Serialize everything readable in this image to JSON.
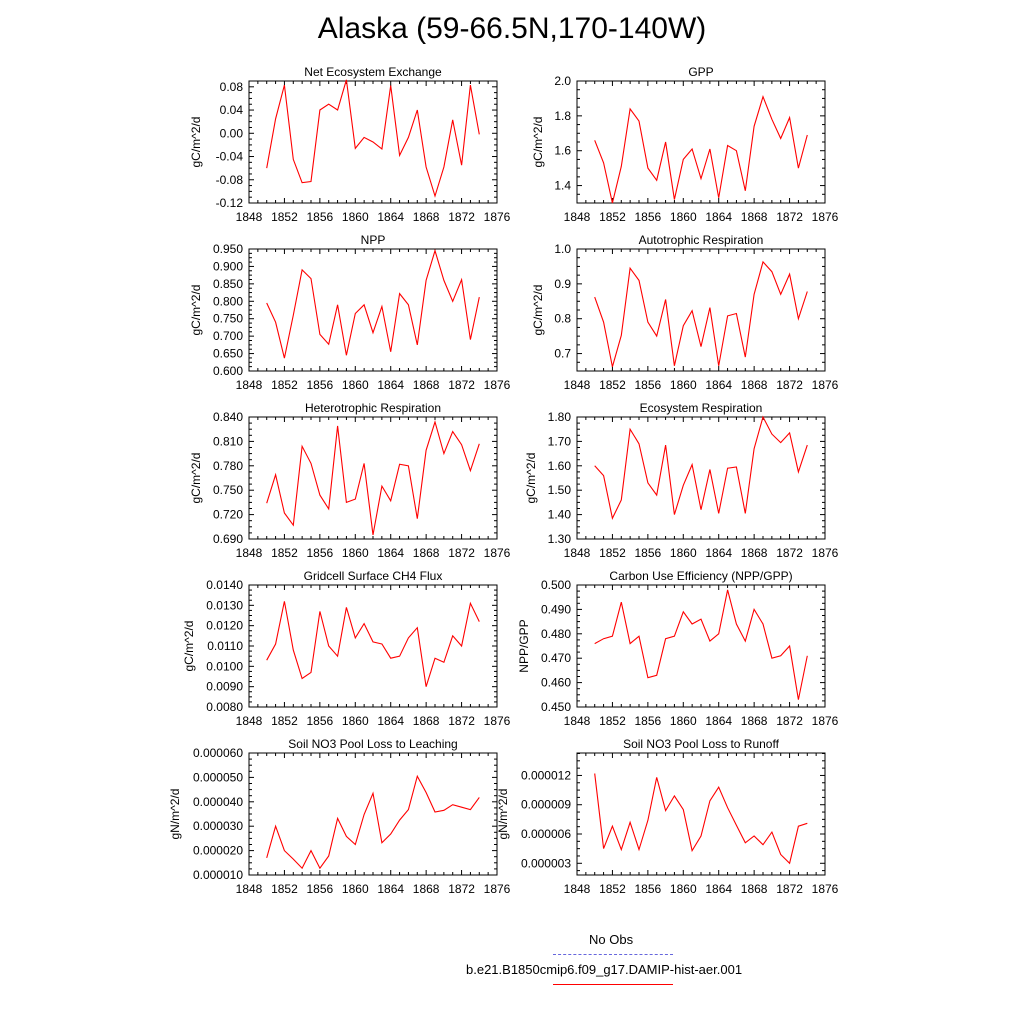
{
  "title": "Alaska (59-66.5N,170-140W)",
  "legend": {
    "obs_label": "No Obs",
    "model_label": "b.e21.B1850cmip6.f09_g17.DAMIP-hist-aer.001",
    "obs_color": "#6666dd",
    "model_color": "#ff0000"
  },
  "chart_data": [
    {
      "type": "line",
      "title": "Net Ecosystem Exchange",
      "ylabel": "gC/m^2/d",
      "xlim": [
        1848,
        1876
      ],
      "ylim": [
        -0.12,
        0.09
      ],
      "xticks": [
        "1848",
        "1852",
        "1856",
        "1860",
        "1864",
        "1868",
        "1872",
        "1876"
      ],
      "yticks": [
        "0.08",
        "0.04",
        "0.00",
        "-0.04",
        "-0.08",
        "-0.12"
      ],
      "x": [
        1850,
        1851,
        1852,
        1853,
        1854,
        1855,
        1856,
        1857,
        1858,
        1859,
        1860,
        1861,
        1862,
        1863,
        1864,
        1865,
        1866,
        1867,
        1868,
        1869,
        1870,
        1871,
        1872,
        1873,
        1874
      ],
      "y": [
        -0.06,
        0.025,
        0.083,
        -0.045,
        -0.085,
        -0.083,
        0.04,
        0.05,
        0.04,
        0.092,
        -0.026,
        -0.007,
        -0.015,
        -0.027,
        0.082,
        -0.038,
        -0.007,
        0.04,
        -0.058,
        -0.108,
        -0.058,
        0.023,
        -0.055,
        0.083,
        -0.002
      ]
    },
    {
      "type": "line",
      "title": "GPP",
      "ylabel": "gC/m^2/d",
      "xlim": [
        1848,
        1876
      ],
      "ylim": [
        1.3,
        2.0
      ],
      "xticks": [
        "1848",
        "1852",
        "1856",
        "1860",
        "1864",
        "1868",
        "1872",
        "1876"
      ],
      "yticks": [
        "2.0",
        "1.8",
        "1.6",
        "1.4"
      ],
      "x": [
        1850,
        1851,
        1852,
        1853,
        1854,
        1855,
        1856,
        1857,
        1858,
        1859,
        1860,
        1861,
        1862,
        1863,
        1864,
        1865,
        1866,
        1867,
        1868,
        1869,
        1870,
        1871,
        1872,
        1873,
        1874
      ],
      "y": [
        1.66,
        1.53,
        1.3,
        1.51,
        1.84,
        1.77,
        1.5,
        1.43,
        1.65,
        1.32,
        1.55,
        1.61,
        1.44,
        1.61,
        1.33,
        1.63,
        1.6,
        1.37,
        1.74,
        1.91,
        1.78,
        1.67,
        1.79,
        1.5,
        1.69
      ]
    },
    {
      "type": "line",
      "title": "NPP",
      "ylabel": "gC/m^2/d",
      "xlim": [
        1848,
        1876
      ],
      "ylim": [
        0.6,
        0.95
      ],
      "xticks": [
        "1848",
        "1852",
        "1856",
        "1860",
        "1864",
        "1868",
        "1872",
        "1876"
      ],
      "yticks": [
        "0.950",
        "0.900",
        "0.850",
        "0.800",
        "0.750",
        "0.700",
        "0.650",
        "0.600"
      ],
      "x": [
        1850,
        1851,
        1852,
        1853,
        1854,
        1855,
        1856,
        1857,
        1858,
        1859,
        1860,
        1861,
        1862,
        1863,
        1864,
        1865,
        1866,
        1867,
        1868,
        1869,
        1870,
        1871,
        1872,
        1873,
        1874
      ],
      "y": [
        0.795,
        0.74,
        0.637,
        0.76,
        0.89,
        0.865,
        0.705,
        0.677,
        0.79,
        0.645,
        0.765,
        0.79,
        0.71,
        0.785,
        0.655,
        0.822,
        0.79,
        0.675,
        0.86,
        0.945,
        0.86,
        0.8,
        0.862,
        0.69,
        0.812
      ]
    },
    {
      "type": "line",
      "title": "Autotrophic Respiration",
      "ylabel": "gC/m^2/d",
      "xlim": [
        1848,
        1876
      ],
      "ylim": [
        0.65,
        1.0
      ],
      "xticks": [
        "1848",
        "1852",
        "1856",
        "1860",
        "1864",
        "1868",
        "1872",
        "1876"
      ],
      "yticks": [
        "1.0",
        "0.9",
        "0.8",
        "0.7"
      ],
      "x": [
        1850,
        1851,
        1852,
        1853,
        1854,
        1855,
        1856,
        1857,
        1858,
        1859,
        1860,
        1861,
        1862,
        1863,
        1864,
        1865,
        1866,
        1867,
        1868,
        1869,
        1870,
        1871,
        1872,
        1873,
        1874
      ],
      "y": [
        0.862,
        0.79,
        0.662,
        0.752,
        0.945,
        0.91,
        0.79,
        0.75,
        0.855,
        0.665,
        0.78,
        0.823,
        0.72,
        0.832,
        0.665,
        0.808,
        0.815,
        0.69,
        0.87,
        0.963,
        0.935,
        0.87,
        0.928,
        0.8,
        0.878
      ]
    },
    {
      "type": "line",
      "title": "Heterotrophic Respiration",
      "ylabel": "gC/m^2/d",
      "xlim": [
        1848,
        1876
      ],
      "ylim": [
        0.69,
        0.84
      ],
      "xticks": [
        "1848",
        "1852",
        "1856",
        "1860",
        "1864",
        "1868",
        "1872",
        "1876"
      ],
      "yticks": [
        "0.840",
        "0.810",
        "0.780",
        "0.750",
        "0.720",
        "0.690"
      ],
      "x": [
        1850,
        1851,
        1852,
        1853,
        1854,
        1855,
        1856,
        1857,
        1858,
        1859,
        1860,
        1861,
        1862,
        1863,
        1864,
        1865,
        1866,
        1867,
        1868,
        1869,
        1870,
        1871,
        1872,
        1873,
        1874
      ],
      "y": [
        0.734,
        0.769,
        0.722,
        0.707,
        0.804,
        0.783,
        0.744,
        0.727,
        0.829,
        0.735,
        0.739,
        0.783,
        0.695,
        0.755,
        0.737,
        0.782,
        0.78,
        0.715,
        0.799,
        0.834,
        0.795,
        0.822,
        0.806,
        0.774,
        0.807
      ]
    },
    {
      "type": "line",
      "title": "Ecosystem Respiration",
      "ylabel": "gC/m^2/d",
      "xlim": [
        1848,
        1876
      ],
      "ylim": [
        1.3,
        1.8
      ],
      "xticks": [
        "1848",
        "1852",
        "1856",
        "1860",
        "1864",
        "1868",
        "1872",
        "1876"
      ],
      "yticks": [
        "1.80",
        "1.70",
        "1.60",
        "1.50",
        "1.40",
        "1.30"
      ],
      "x": [
        1850,
        1851,
        1852,
        1853,
        1854,
        1855,
        1856,
        1857,
        1858,
        1859,
        1860,
        1861,
        1862,
        1863,
        1864,
        1865,
        1866,
        1867,
        1868,
        1869,
        1870,
        1871,
        1872,
        1873,
        1874
      ],
      "y": [
        1.6,
        1.56,
        1.385,
        1.46,
        1.75,
        1.69,
        1.53,
        1.48,
        1.685,
        1.4,
        1.52,
        1.605,
        1.42,
        1.585,
        1.405,
        1.59,
        1.595,
        1.405,
        1.67,
        1.8,
        1.73,
        1.695,
        1.735,
        1.575,
        1.685
      ]
    },
    {
      "type": "line",
      "title": "Gridcell Surface CH4 Flux",
      "ylabel": "gC/m^2/d",
      "xlim": [
        1848,
        1876
      ],
      "ylim": [
        0.008,
        0.014
      ],
      "xticks": [
        "1848",
        "1852",
        "1856",
        "1860",
        "1864",
        "1868",
        "1872",
        "1876"
      ],
      "yticks": [
        "0.0140",
        "0.0130",
        "0.0120",
        "0.0110",
        "0.0100",
        "0.0090",
        "0.0080"
      ],
      "x": [
        1850,
        1851,
        1852,
        1853,
        1854,
        1855,
        1856,
        1857,
        1858,
        1859,
        1860,
        1861,
        1862,
        1863,
        1864,
        1865,
        1866,
        1867,
        1868,
        1869,
        1870,
        1871,
        1872,
        1873,
        1874
      ],
      "y": [
        0.0103,
        0.0111,
        0.0132,
        0.0108,
        0.0094,
        0.0097,
        0.0127,
        0.011,
        0.0105,
        0.0129,
        0.0114,
        0.0121,
        0.0112,
        0.0111,
        0.0104,
        0.0105,
        0.0114,
        0.0119,
        0.009,
        0.0104,
        0.0102,
        0.0115,
        0.011,
        0.0131,
        0.0122
      ]
    },
    {
      "type": "line",
      "title": "Carbon Use Efficiency (NPP/GPP)",
      "ylabel": "NPP/GPP",
      "xlim": [
        1848,
        1876
      ],
      "ylim": [
        0.45,
        0.5
      ],
      "xticks": [
        "1848",
        "1852",
        "1856",
        "1860",
        "1864",
        "1868",
        "1872",
        "1876"
      ],
      "yticks": [
        "0.500",
        "0.490",
        "0.480",
        "0.470",
        "0.460",
        "0.450"
      ],
      "x": [
        1850,
        1851,
        1852,
        1853,
        1854,
        1855,
        1856,
        1857,
        1858,
        1859,
        1860,
        1861,
        1862,
        1863,
        1864,
        1865,
        1866,
        1867,
        1868,
        1869,
        1870,
        1871,
        1872,
        1873,
        1874
      ],
      "y": [
        0.476,
        0.478,
        0.479,
        0.493,
        0.476,
        0.479,
        0.462,
        0.463,
        0.478,
        0.479,
        0.489,
        0.484,
        0.486,
        0.477,
        0.48,
        0.498,
        0.484,
        0.477,
        0.49,
        0.484,
        0.47,
        0.471,
        0.475,
        0.453,
        0.471
      ]
    },
    {
      "type": "line",
      "title": "Soil NO3 Pool Loss to Leaching",
      "ylabel": "gN/m^2/d",
      "xlim": [
        1848,
        1876
      ],
      "ylim": [
        1e-05,
        6e-05
      ],
      "xticks": [
        "1848",
        "1852",
        "1856",
        "1860",
        "1864",
        "1868",
        "1872",
        "1876"
      ],
      "yticks": [
        "0.000060",
        "0.000050",
        "0.000040",
        "0.000030",
        "0.000020",
        "0.000010"
      ],
      "x": [
        1850,
        1851,
        1852,
        1853,
        1854,
        1855,
        1856,
        1857,
        1858,
        1859,
        1860,
        1861,
        1862,
        1863,
        1864,
        1865,
        1866,
        1867,
        1868,
        1869,
        1870,
        1871,
        1872,
        1873,
        1874
      ],
      "y": [
        1.7e-05,
        3e-05,
        2e-05,
        1.65e-05,
        1.28e-05,
        2e-05,
        1.28e-05,
        1.78e-05,
        3.32e-05,
        2.58e-05,
        2.25e-05,
        3.48e-05,
        4.35e-05,
        2.32e-05,
        2.68e-05,
        3.25e-05,
        3.68e-05,
        5.05e-05,
        4.38e-05,
        3.58e-05,
        3.65e-05,
        3.88e-05,
        3.78e-05,
        3.68e-05,
        4.18e-05
      ]
    },
    {
      "type": "line",
      "title": "Soil NO3 Pool Loss to Runoff",
      "ylabel": "gN/m^2/d",
      "xlim": [
        1848,
        1876
      ],
      "ylim": [
        1.8e-06,
        1.43e-05
      ],
      "xticks": [
        "1848",
        "1852",
        "1856",
        "1860",
        "1864",
        "1868",
        "1872",
        "1876"
      ],
      "yticks": [
        "0.000012",
        "0.000009",
        "0.000006",
        "0.000003"
      ],
      "x": [
        1850,
        1851,
        1852,
        1853,
        1854,
        1855,
        1856,
        1857,
        1858,
        1859,
        1860,
        1861,
        1862,
        1863,
        1864,
        1865,
        1866,
        1867,
        1868,
        1869,
        1870,
        1871,
        1872,
        1873,
        1874
      ],
      "y": [
        1.22e-05,
        4.5e-06,
        6.8e-06,
        4.4e-06,
        7.2e-06,
        4.4e-06,
        7.4e-06,
        1.18e-05,
        8.4e-06,
        9.9e-06,
        8.5e-06,
        4.3e-06,
        5.8e-06,
        9.4e-06,
        1.08e-05,
        8.7e-06,
        6.9e-06,
        5.1e-06,
        5.8e-06,
        4.9e-06,
        6.2e-06,
        3.9e-06,
        3e-06,
        6.8e-06,
        7.1e-06
      ]
    }
  ]
}
